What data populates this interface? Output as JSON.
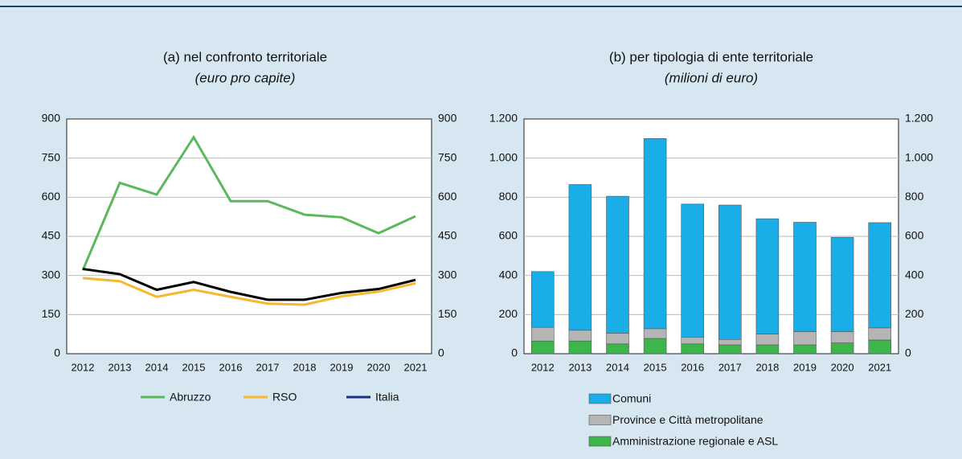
{
  "chart_data": [
    {
      "type": "line",
      "title": "(a) nel confronto territoriale",
      "subtitle": "(euro pro capite)",
      "categories": [
        "2012",
        "2013",
        "2014",
        "2015",
        "2016",
        "2017",
        "2018",
        "2019",
        "2020",
        "2021"
      ],
      "series": [
        {
          "name": "Abruzzo",
          "color": "#5cb85c",
          "values": [
            320,
            655,
            610,
            830,
            585,
            585,
            533,
            523,
            462,
            527
          ]
        },
        {
          "name": "RSO",
          "color": "#f5b82e",
          "values": [
            290,
            278,
            218,
            245,
            218,
            192,
            188,
            220,
            238,
            270
          ]
        },
        {
          "name": "Italia",
          "color": "#1c2f80",
          "values": [
            325,
            305,
            245,
            275,
            237,
            207,
            207,
            233,
            248,
            283
          ]
        }
      ],
      "ylim": [
        0,
        900
      ],
      "yticks": [
        0,
        150,
        300,
        450,
        600,
        750,
        900
      ]
    },
    {
      "type": "stacked-bar",
      "title": "(b) per tipologia di ente territoriale",
      "subtitle": "(milioni di euro)",
      "categories": [
        "2012",
        "2013",
        "2014",
        "2015",
        "2016",
        "2017",
        "2018",
        "2019",
        "2020",
        "2021"
      ],
      "series": [
        {
          "name": "Amministrazione regionale e ASL",
          "color": "#3cb54a",
          "values": [
            65,
            65,
            50,
            78,
            50,
            45,
            45,
            45,
            55,
            70
          ]
        },
        {
          "name": "Province e Città metropolitane",
          "color": "#b5b5b5",
          "values": [
            70,
            55,
            55,
            50,
            35,
            28,
            55,
            68,
            58,
            62
          ]
        },
        {
          "name": "Comuni",
          "color": "#1aaee8",
          "values": [
            285,
            745,
            700,
            972,
            680,
            687,
            590,
            559,
            482,
            538
          ]
        }
      ],
      "ylim": [
        0,
        1200
      ],
      "yticks": [
        0,
        200,
        400,
        600,
        800,
        {
          "value": 1000,
          "label": "1.000"
        },
        {
          "value": 1200,
          "label": "1.200"
        }
      ]
    }
  ]
}
